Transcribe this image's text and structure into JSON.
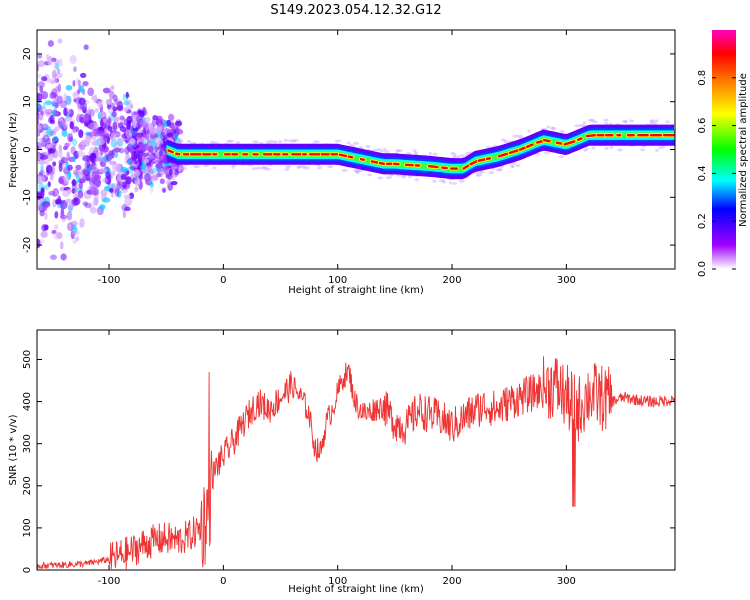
{
  "title": "S149.2023.054.12.32.G12",
  "chart_data": [
    {
      "type": "heatmap",
      "xlabel": "Height of straight line (km)",
      "ylabel": "Frequency (Hz)",
      "xlim": [
        -163,
        395
      ],
      "ylim": [
        -25,
        25
      ],
      "xticks": [
        -100,
        0,
        100,
        200,
        300
      ],
      "yticks": [
        -20,
        -10,
        0,
        10,
        20
      ],
      "colorbar": {
        "label": "Normalized spectral amplitude",
        "range": [
          0.0,
          1.0
        ],
        "ticks": [
          0.0,
          0.2,
          0.4,
          0.6,
          0.8
        ],
        "tick_labels": [
          "0.0",
          "0.2",
          "0.4",
          "0.6",
          "0.8"
        ],
        "colormap": [
          "#ffffff",
          "#a000ff",
          "#0000ff",
          "#00ffff",
          "#00ff00",
          "#ffff00",
          "#ff8000",
          "#ff0000",
          "#ff00c0"
        ]
      },
      "ridge": {
        "x": [
          -50,
          -40,
          -30,
          -20,
          0,
          20,
          40,
          60,
          80,
          100,
          110,
          120,
          130,
          140,
          150,
          160,
          180,
          200,
          210,
          220,
          240,
          260,
          270,
          280,
          290,
          300,
          310,
          320,
          340,
          360,
          395
        ],
        "y": [
          0,
          -1,
          -1,
          -1,
          -1,
          -1,
          -1,
          -1,
          -1,
          -1,
          -1.5,
          -2,
          -2.5,
          -3,
          -3,
          -3.2,
          -3.5,
          -4,
          -4,
          -2.5,
          -1.5,
          0,
          1,
          2,
          1.5,
          1,
          2,
          3,
          3,
          3,
          3
        ]
      }
    },
    {
      "type": "line",
      "xlabel": "Height of straight line (km)",
      "ylabel": "SNR (10 * v/v)",
      "xlim": [
        -163,
        395
      ],
      "ylim": [
        0,
        570
      ],
      "xticks": [
        -100,
        0,
        100,
        200,
        300
      ],
      "yticks": [
        0,
        100,
        200,
        300,
        400,
        500
      ],
      "color": "#ee3333",
      "series": [
        {
          "x": [
            -163,
            -140,
            -120,
            -100,
            -90,
            -80,
            -70,
            -60,
            -50,
            -40,
            -30,
            -25,
            -20,
            -15,
            -12,
            -10,
            -5,
            0,
            10,
            20,
            30,
            40,
            50,
            60,
            70,
            75,
            80,
            85,
            90,
            95,
            100,
            105,
            110,
            115,
            120,
            125,
            130,
            140,
            150,
            160,
            170,
            180,
            190,
            200,
            210,
            220,
            230,
            240,
            250,
            260,
            270,
            280,
            290,
            300,
            310,
            320,
            330,
            340,
            350,
            360,
            370,
            380,
            395
          ],
          "y": [
            10,
            12,
            15,
            25,
            35,
            45,
            60,
            70,
            75,
            70,
            80,
            90,
            100,
            120,
            160,
            220,
            250,
            270,
            310,
            360,
            400,
            380,
            410,
            440,
            400,
            370,
            290,
            280,
            350,
            380,
            420,
            460,
            470,
            400,
            380,
            370,
            380,
            390,
            350,
            340,
            380,
            370,
            360,
            340,
            360,
            380,
            390,
            380,
            400,
            410,
            420,
            430,
            440,
            410,
            380,
            420,
            410,
            400,
            410,
            405,
            400,
            400,
            405
          ]
        }
      ]
    }
  ]
}
